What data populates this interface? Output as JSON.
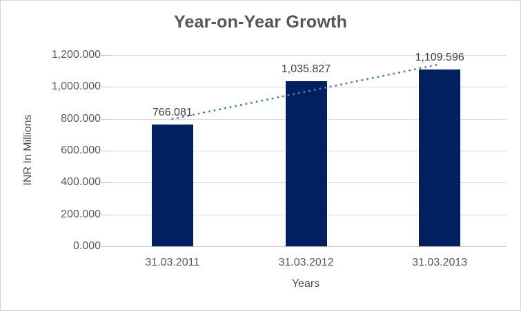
{
  "chart_data": {
    "type": "bar",
    "title": "Year-on-Year Growth",
    "xlabel": "Years",
    "ylabel": "INR In Millions",
    "categories": [
      "31.03.2011",
      "31.03.2012",
      "31.03.2013"
    ],
    "values": [
      766.081,
      1035.827,
      1109.596
    ],
    "value_labels": [
      "766.081",
      "1,035.827",
      "1,109.596"
    ],
    "y_ticks": [
      "0.000",
      "200.000",
      "400.000",
      "600.000",
      "800.000",
      "1,000.000",
      "1,200.000"
    ],
    "ylim": [
      0,
      1200
    ],
    "grid": true,
    "legend": "none",
    "trendline": {
      "type": "linear",
      "style": "dotted",
      "start_value": 798.74,
      "end_value": 1142.26
    },
    "colors": {
      "bar": "#002060",
      "trend": "#4f81bd",
      "grid": "#d9d9d9",
      "axis": "#c6c6c6",
      "tick_text": "#595959",
      "label_text": "#404040",
      "title_text": "#565656",
      "border": "#d3d3d3",
      "background": "#ffffff"
    }
  }
}
